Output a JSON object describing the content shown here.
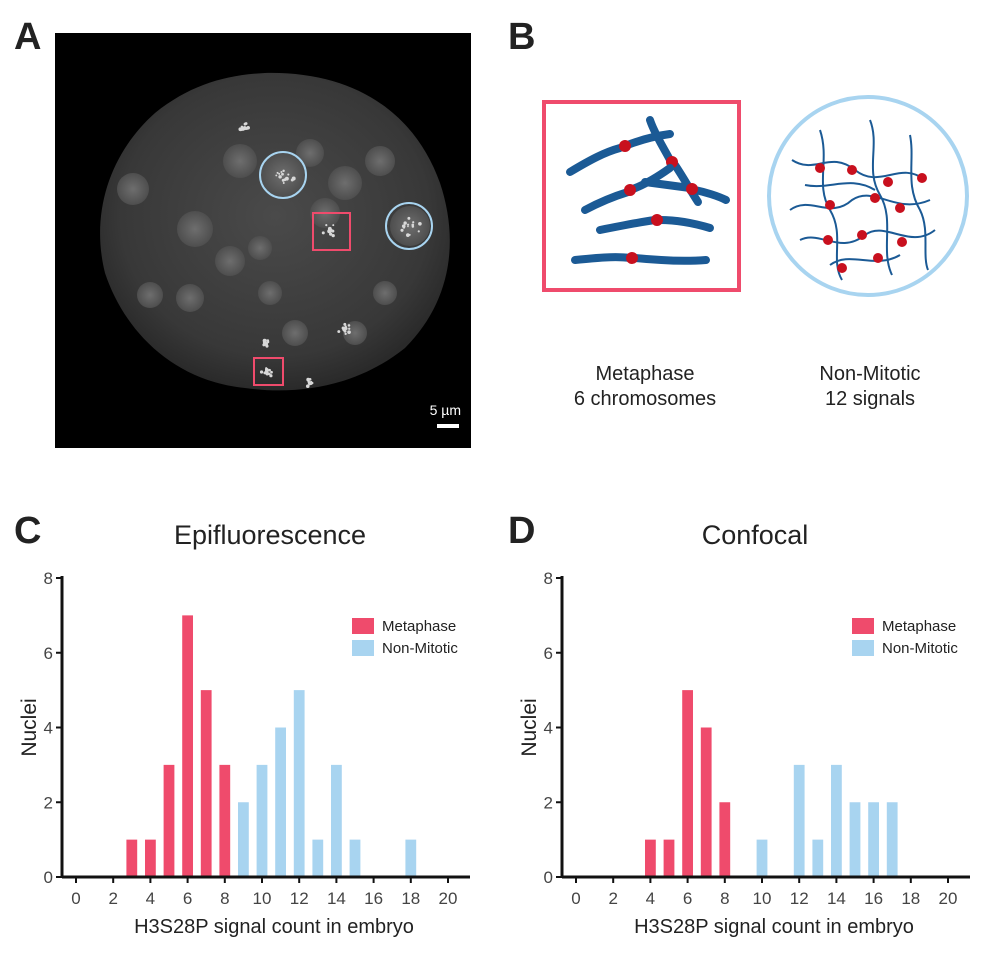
{
  "panels": {
    "a": "A",
    "b": "B",
    "c": "C",
    "d": "D"
  },
  "micrograph": {
    "scale_label": "5 µm",
    "colors": {
      "circle": "#a8d4f0",
      "square": "#ef4b6c"
    }
  },
  "schematic": {
    "metaphase_line1": "Metaphase",
    "metaphase_line2": "6 chromosomes",
    "nonmitotic_line1": "Non-Mitotic",
    "nonmitotic_line2": "12 signals",
    "colors": {
      "frame_metaphase": "#ef4b6c",
      "frame_nonmitotic": "#a8d4f0",
      "chromosome": "#1b5a95",
      "signal": "#c8101e"
    }
  },
  "chart_data": [
    {
      "id": "C",
      "type": "bar",
      "title": "Epifluorescence",
      "xlabel": "H3S28P signal count in embryo",
      "ylabel": "Nuclei",
      "xlim": [
        0,
        20
      ],
      "ylim": [
        0,
        8
      ],
      "xticks": [
        0,
        2,
        4,
        6,
        8,
        10,
        12,
        14,
        16,
        18,
        20
      ],
      "yticks": [
        0,
        2,
        4,
        6,
        8
      ],
      "legend_position": "top-right",
      "series": [
        {
          "name": "Metaphase",
          "color": "#ef4b6c",
          "points": [
            [
              3,
              1
            ],
            [
              4,
              1
            ],
            [
              5,
              3
            ],
            [
              6,
              7
            ],
            [
              7,
              5
            ],
            [
              8,
              3
            ]
          ]
        },
        {
          "name": "Non-Mitotic",
          "color": "#a8d4f0",
          "points": [
            [
              9,
              2
            ],
            [
              10,
              3
            ],
            [
              11,
              4
            ],
            [
              12,
              5
            ],
            [
              13,
              1
            ],
            [
              14,
              3
            ],
            [
              15,
              1
            ],
            [
              18,
              1
            ]
          ]
        }
      ]
    },
    {
      "id": "D",
      "type": "bar",
      "title": "Confocal",
      "xlabel": "H3S28P signal count in embryo",
      "ylabel": "Nuclei",
      "xlim": [
        0,
        20
      ],
      "ylim": [
        0,
        8
      ],
      "xticks": [
        0,
        2,
        4,
        6,
        8,
        10,
        12,
        14,
        16,
        18,
        20
      ],
      "yticks": [
        0,
        2,
        4,
        6,
        8
      ],
      "legend_position": "top-right",
      "series": [
        {
          "name": "Metaphase",
          "color": "#ef4b6c",
          "points": [
            [
              4,
              1
            ],
            [
              5,
              1
            ],
            [
              6,
              5
            ],
            [
              7,
              4
            ],
            [
              8,
              2
            ]
          ]
        },
        {
          "name": "Non-Mitotic",
          "color": "#a8d4f0",
          "points": [
            [
              10,
              1
            ],
            [
              12,
              3
            ],
            [
              13,
              1
            ],
            [
              14,
              3
            ],
            [
              15,
              2
            ],
            [
              16,
              2
            ],
            [
              17,
              2
            ]
          ]
        }
      ]
    }
  ]
}
